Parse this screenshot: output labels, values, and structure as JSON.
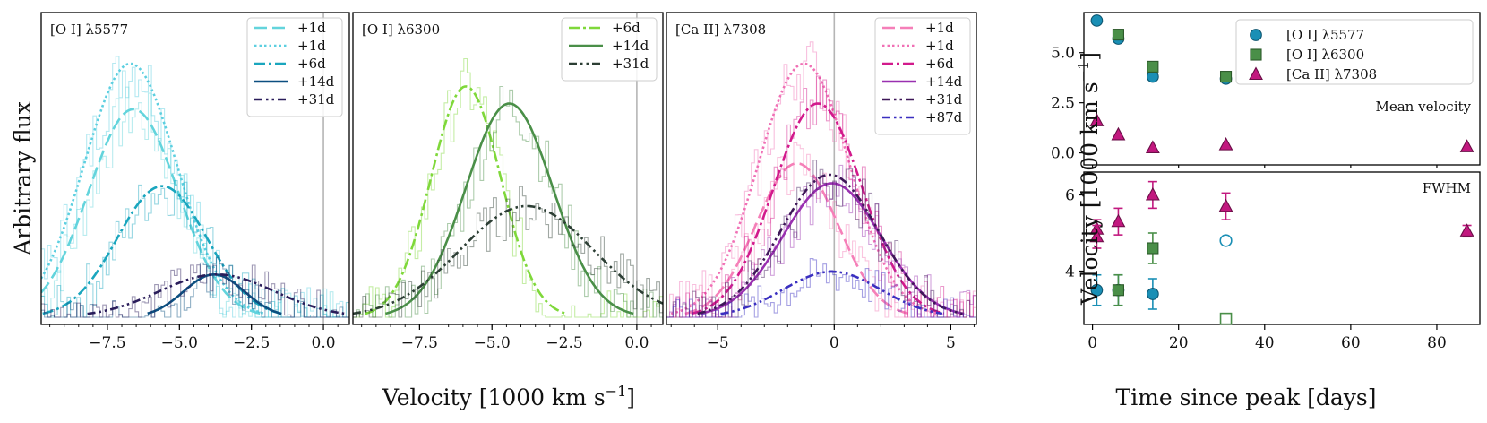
{
  "chart_data": [
    {
      "type": "line",
      "panel": "left",
      "title": "[O I] λ5577",
      "xlim": [
        -9.8,
        0.9
      ],
      "ylim": [
        0,
        1
      ],
      "xticks": [
        -7.5,
        -5.0,
        -2.5,
        0.0
      ],
      "xtick_labels": [
        "−7.5",
        "−5.0",
        "−2.5",
        "0.0"
      ],
      "vline": 0.0,
      "series": [
        {
          "name": "+1d",
          "style": "dashed",
          "color": "#63d4dc",
          "center": -6.6,
          "sigma": 1.55,
          "amp": 0.73
        },
        {
          "name": "+1d",
          "style": "dotted",
          "color": "#5ccfe0",
          "center": -6.7,
          "sigma": 1.6,
          "amp": 0.89
        },
        {
          "name": "+6d",
          "style": "dashdot",
          "color": "#1aa6be",
          "center": -5.6,
          "sigma": 1.55,
          "amp": 0.46
        },
        {
          "name": "+14d",
          "style": "solid",
          "color": "#0c4f80",
          "center": -3.8,
          "sigma": 1.05,
          "amp": 0.15
        },
        {
          "name": "+31d",
          "style": "dashdotdot",
          "color": "#2a1d5a",
          "center": -3.7,
          "sigma": 2.0,
          "amp": 0.15
        }
      ],
      "legend_position": "top-right"
    },
    {
      "type": "line",
      "panel": "middle",
      "title": "[O I] λ6300",
      "xlim": [
        -9.8,
        0.9
      ],
      "ylim": [
        0,
        1
      ],
      "xticks": [
        -7.5,
        -5.0,
        -2.5,
        0.0
      ],
      "xtick_labels": [
        "−7.5",
        "−5.0",
        "−2.5",
        "0.0"
      ],
      "vline": 0.0,
      "series": [
        {
          "name": "+6d",
          "style": "dashdot",
          "color": "#7fd83a",
          "center": -5.9,
          "sigma": 1.2,
          "amp": 0.81
        },
        {
          "name": "+14d",
          "style": "solid",
          "color": "#4a8f48",
          "center": -4.4,
          "sigma": 1.5,
          "amp": 0.75
        },
        {
          "name": "+31d",
          "style": "dashdotdot",
          "color": "#2c3e34",
          "center": -3.8,
          "sigma": 2.3,
          "amp": 0.39
        }
      ],
      "legend_position": "top-right"
    },
    {
      "type": "line",
      "panel": "right",
      "title": "[Ca II] λ7308",
      "xlim": [
        -7.2,
        6.1
      ],
      "ylim": [
        0,
        1
      ],
      "xticks": [
        -5,
        0,
        5
      ],
      "xtick_labels": [
        "−5",
        "0",
        "5"
      ],
      "vline": 0.0,
      "series": [
        {
          "name": "+1d",
          "style": "dashed",
          "color": "#f57fb8",
          "center": -1.6,
          "sigma": 1.75,
          "amp": 0.54
        },
        {
          "name": "+1d",
          "style": "dotted",
          "color": "#f070b5",
          "center": -1.3,
          "sigma": 1.95,
          "amp": 0.89
        },
        {
          "name": "+6d",
          "style": "dashdot",
          "color": "#d21a8c",
          "center": -0.7,
          "sigma": 1.9,
          "amp": 0.75
        },
        {
          "name": "+14d",
          "style": "solid",
          "color": "#9930b0",
          "center": -0.1,
          "sigma": 2.1,
          "amp": 0.47
        },
        {
          "name": "+31d",
          "style": "dashdotdot",
          "color": "#3e1758",
          "center": -0.2,
          "sigma": 2.1,
          "amp": 0.5
        },
        {
          "name": "+87d",
          "style": "dashdotdot",
          "color": "#3a2fc0",
          "center": -0.1,
          "sigma": 2.1,
          "amp": 0.16
        }
      ],
      "legend_position": "top-right"
    },
    {
      "type": "scatter",
      "panel": "mean-velocity",
      "annotation": "Mean velocity",
      "xlim": [
        -2,
        90
      ],
      "ylim": [
        -0.6,
        7.0
      ],
      "yticks": [
        0.0,
        2.5,
        5.0
      ],
      "ytick_labels": [
        "0.0",
        "2.5",
        "5.0"
      ],
      "series": [
        {
          "name": "[O I] λ5577",
          "marker": "circle",
          "color": "#1a8fb5",
          "x": [
            1,
            6,
            14,
            31
          ],
          "y": [
            6.6,
            5.7,
            3.8,
            3.7
          ]
        },
        {
          "name": "[O I] λ6300",
          "marker": "square",
          "color": "#4a8f48",
          "x": [
            6,
            14,
            31
          ],
          "y": [
            5.9,
            4.3,
            3.8
          ]
        },
        {
          "name": "[Ca II] λ7308",
          "marker": "triangle",
          "color": "#c2187f",
          "x": [
            1,
            6,
            14,
            31,
            87
          ],
          "y": [
            1.6,
            0.9,
            0.25,
            0.4,
            0.3
          ]
        }
      ],
      "legend_position": "top-right"
    },
    {
      "type": "scatter",
      "panel": "fwhm",
      "annotation": "FWHM",
      "xlabel": "Time since peak [days]",
      "xlim": [
        -2,
        90
      ],
      "ylim": [
        2.6,
        6.6
      ],
      "xticks": [
        0,
        20,
        40,
        60,
        80
      ],
      "xtick_labels": [
        "0",
        "20",
        "40",
        "60",
        "80"
      ],
      "yticks": [
        4,
        6
      ],
      "ytick_labels": [
        "4",
        "6"
      ],
      "series": [
        {
          "name": "[O I] λ5577",
          "marker": "circle",
          "color": "#1a8fb5",
          "x": [
            1,
            6,
            14
          ],
          "y": [
            3.5,
            3.5,
            3.4
          ],
          "err": [
            0.4,
            0.4,
            0.4
          ]
        },
        {
          "name": "[O I] λ5577 (open)",
          "marker": "circle-open",
          "color": "#1a8fb5",
          "x": [
            31
          ],
          "y": [
            4.8
          ],
          "err": [
            0
          ]
        },
        {
          "name": "[O I] λ6300",
          "marker": "square",
          "color": "#4a8f48",
          "x": [
            6,
            14
          ],
          "y": [
            3.5,
            4.6
          ],
          "err": [
            0.4,
            0.4
          ]
        },
        {
          "name": "[O I] λ6300 (open)",
          "marker": "square-open",
          "color": "#4a8f48",
          "x": [
            31
          ],
          "y": [
            2.75
          ],
          "err": [
            0
          ]
        },
        {
          "name": "[Ca II] λ7308",
          "marker": "triangle",
          "color": "#c2187f",
          "x": [
            1,
            1,
            6,
            14,
            31,
            87
          ],
          "y": [
            5.1,
            4.9,
            5.3,
            6.0,
            5.7,
            5.05
          ],
          "err": [
            0.25,
            0.3,
            0.35,
            0.35,
            0.35,
            0.15
          ]
        }
      ]
    }
  ],
  "labels": {
    "ylabel_left": "Arbitrary flux",
    "xlabel_spectra": "Velocity [1000 km s",
    "xlabel_sup": "−1",
    "xlabel_close": "]",
    "ylabel_right": "Velocity [1000 km s",
    "ylabel_right_sup": "−1",
    "ylabel_right_close": "]",
    "xlabel_right": "Time since peak [days]"
  }
}
